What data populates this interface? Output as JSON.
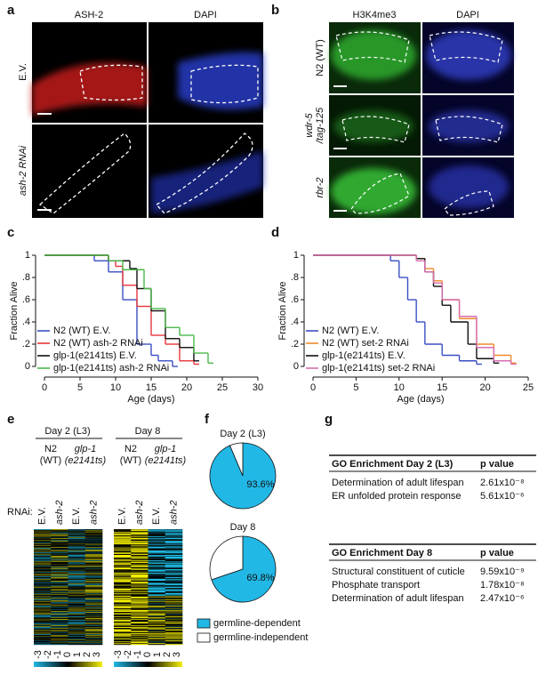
{
  "panel_labels": [
    "a",
    "b",
    "c",
    "d",
    "e",
    "f",
    "g"
  ],
  "panel_a": {
    "columns": [
      "ASH-2",
      "DAPI"
    ],
    "rows": [
      [
        "E.V."
      ],
      [
        "ash-2 RNAi"
      ]
    ]
  },
  "panel_b": {
    "columns": [
      "H3K4me3",
      "DAPI"
    ],
    "rows": [
      [
        "N2 (WT)"
      ],
      [
        "wdr-5",
        "/tag-125"
      ],
      [
        "rbr-2"
      ]
    ]
  },
  "chart_data": [
    {
      "type": "step",
      "xlabel": "Age (days)",
      "ylabel": "Fraction Alive",
      "xlim": [
        0,
        30
      ],
      "xticks": [
        0,
        5,
        10,
        15,
        20,
        25,
        30
      ],
      "ylim": [
        0,
        1
      ],
      "yticks": [
        0,
        {
          "value": 0.2,
          "label": ".2"
        },
        {
          "value": 0.4,
          "label": ".4"
        },
        {
          "value": 0.6,
          "label": ".6"
        },
        {
          "value": 0.8,
          "label": ".8"
        },
        1
      ],
      "legend": "lower left",
      "series": [
        {
          "name": "N2 (WT) E.V.",
          "color": "#3b4fc4",
          "x": [
            0,
            7,
            9,
            11,
            13,
            15,
            16,
            18
          ],
          "values": [
            1,
            0.95,
            0.85,
            0.6,
            0.2,
            0.1,
            0.05,
            0
          ]
        },
        {
          "name": "N2 (WT) ash-2 RNAi",
          "color": "#e8363a",
          "x": [
            0,
            9,
            10,
            11,
            13,
            15,
            17,
            19,
            21
          ],
          "values": [
            1,
            0.95,
            0.9,
            0.73,
            0.54,
            0.28,
            0.2,
            0.05,
            0.02
          ]
        },
        {
          "name": "glp-1(e2141ts) E.V.",
          "color": "#111111",
          "x": [
            0,
            9,
            12,
            13,
            15,
            17,
            19,
            21
          ],
          "values": [
            1,
            0.95,
            0.88,
            0.7,
            0.5,
            0.25,
            0.17,
            0.05
          ]
        },
        {
          "name": "glp-1(e2141ts) ash-2 RNAi",
          "color": "#4bb84a",
          "x": [
            0,
            9,
            11,
            14,
            15,
            17,
            19,
            21,
            23
          ],
          "values": [
            1,
            0.95,
            0.87,
            0.7,
            0.52,
            0.35,
            0.28,
            0.12,
            0.03
          ]
        }
      ]
    },
    {
      "type": "step",
      "xlabel": "Age (days)",
      "ylabel": "Fraction Alive",
      "xlim": [
        0,
        25
      ],
      "xticks": [
        0,
        5,
        10,
        15,
        20,
        25
      ],
      "ylim": [
        0,
        1
      ],
      "yticks": [
        0,
        {
          "value": 0.2,
          "label": ".2"
        },
        {
          "value": 0.4,
          "label": ".4"
        },
        {
          "value": 0.6,
          "label": ".6"
        },
        {
          "value": 0.8,
          "label": ".8"
        },
        1
      ],
      "legend": "lower left",
      "series": [
        {
          "name": "N2 (WT) E.V.",
          "color": "#3b4fc4",
          "x": [
            0,
            9,
            10,
            11,
            12,
            13,
            15,
            17,
            19
          ],
          "values": [
            1,
            0.95,
            0.8,
            0.6,
            0.4,
            0.2,
            0.1,
            0.05,
            0.02
          ]
        },
        {
          "name": "N2 (WT) set-2 RNAi",
          "color": "#f08a2c",
          "x": [
            0,
            12,
            13,
            14,
            15,
            17,
            19,
            21,
            23
          ],
          "values": [
            1,
            0.97,
            0.88,
            0.77,
            0.6,
            0.43,
            0.2,
            0.1,
            0.03
          ]
        },
        {
          "name": "glp-1(e2141ts) E.V.",
          "color": "#111111",
          "x": [
            0,
            12,
            13,
            14,
            15,
            16,
            18,
            19,
            21
          ],
          "values": [
            1,
            0.97,
            0.85,
            0.72,
            0.55,
            0.4,
            0.2,
            0.07,
            0.03
          ]
        },
        {
          "name": "glp-1(e2141ts) set-2 RNAi",
          "color": "#d66fb0",
          "x": [
            0,
            12,
            13,
            14,
            15,
            17,
            19,
            21,
            23
          ],
          "values": [
            1,
            0.95,
            0.85,
            0.75,
            0.6,
            0.45,
            0.17,
            0.05,
            0.02
          ]
        }
      ]
    },
    {
      "type": "pie",
      "title": "Day 2 (L3)",
      "categories": [
        "germline-dependent",
        "germline-independent"
      ],
      "values": [
        93.6,
        6.4
      ],
      "value_labels": [
        "93.6%",
        null
      ],
      "colors": [
        "#22b8e6",
        "#ffffff"
      ]
    },
    {
      "type": "pie",
      "title": "Day 8",
      "categories": [
        "germline-dependent",
        "germline-independent"
      ],
      "values": [
        69.8,
        30.2
      ],
      "value_labels": [
        "69.8%",
        null
      ],
      "colors": [
        "#22b8e6",
        "#ffffff"
      ]
    }
  ],
  "panel_e": {
    "rnai_label": "RNAi:",
    "colorbar_ticks": [
      -3,
      -2,
      -1,
      0,
      1,
      2,
      3
    ],
    "groups": [
      {
        "title": "Day 2 (L3)",
        "strains": [
          [
            "N2",
            "(WT)"
          ],
          [
            "glp-1",
            "(e2141ts)"
          ]
        ],
        "rnai": [
          "E.V.",
          "ash-2",
          "E.V.",
          "ash-2"
        ]
      },
      {
        "title": "Day 8",
        "strains": [
          [
            "N2",
            "(WT)"
          ],
          [
            "glp-1",
            "(e2141ts)"
          ]
        ],
        "rnai": [
          "E.V.",
          "ash-2",
          "E.V.",
          "ash-2"
        ]
      }
    ]
  },
  "panel_g": {
    "tables": [
      {
        "header": [
          "GO Enrichment Day 2 (L3)",
          "p value"
        ],
        "rows": [
          {
            "term": "Determination of adult lifespan",
            "p": "2.61x10⁻⁸",
            "color": "#2b3f9e"
          },
          {
            "term": "ER unfolded protein response",
            "p": "5.61x10⁻⁶",
            "color": "#111111"
          }
        ]
      },
      {
        "header": [
          "GO Enrichment Day 8",
          "p value"
        ],
        "rows": [
          {
            "term": "Structural constituent of cuticle",
            "p": "9.59x10⁻⁹",
            "color": "#111111"
          },
          {
            "term": "Phosphate transport",
            "p": "1.78x10⁻⁸",
            "color": "#111111"
          },
          {
            "term": "Determination of adult lifespan",
            "p": "2.47x10⁻⁶",
            "color": "#2b3f9e"
          }
        ]
      }
    ]
  }
}
